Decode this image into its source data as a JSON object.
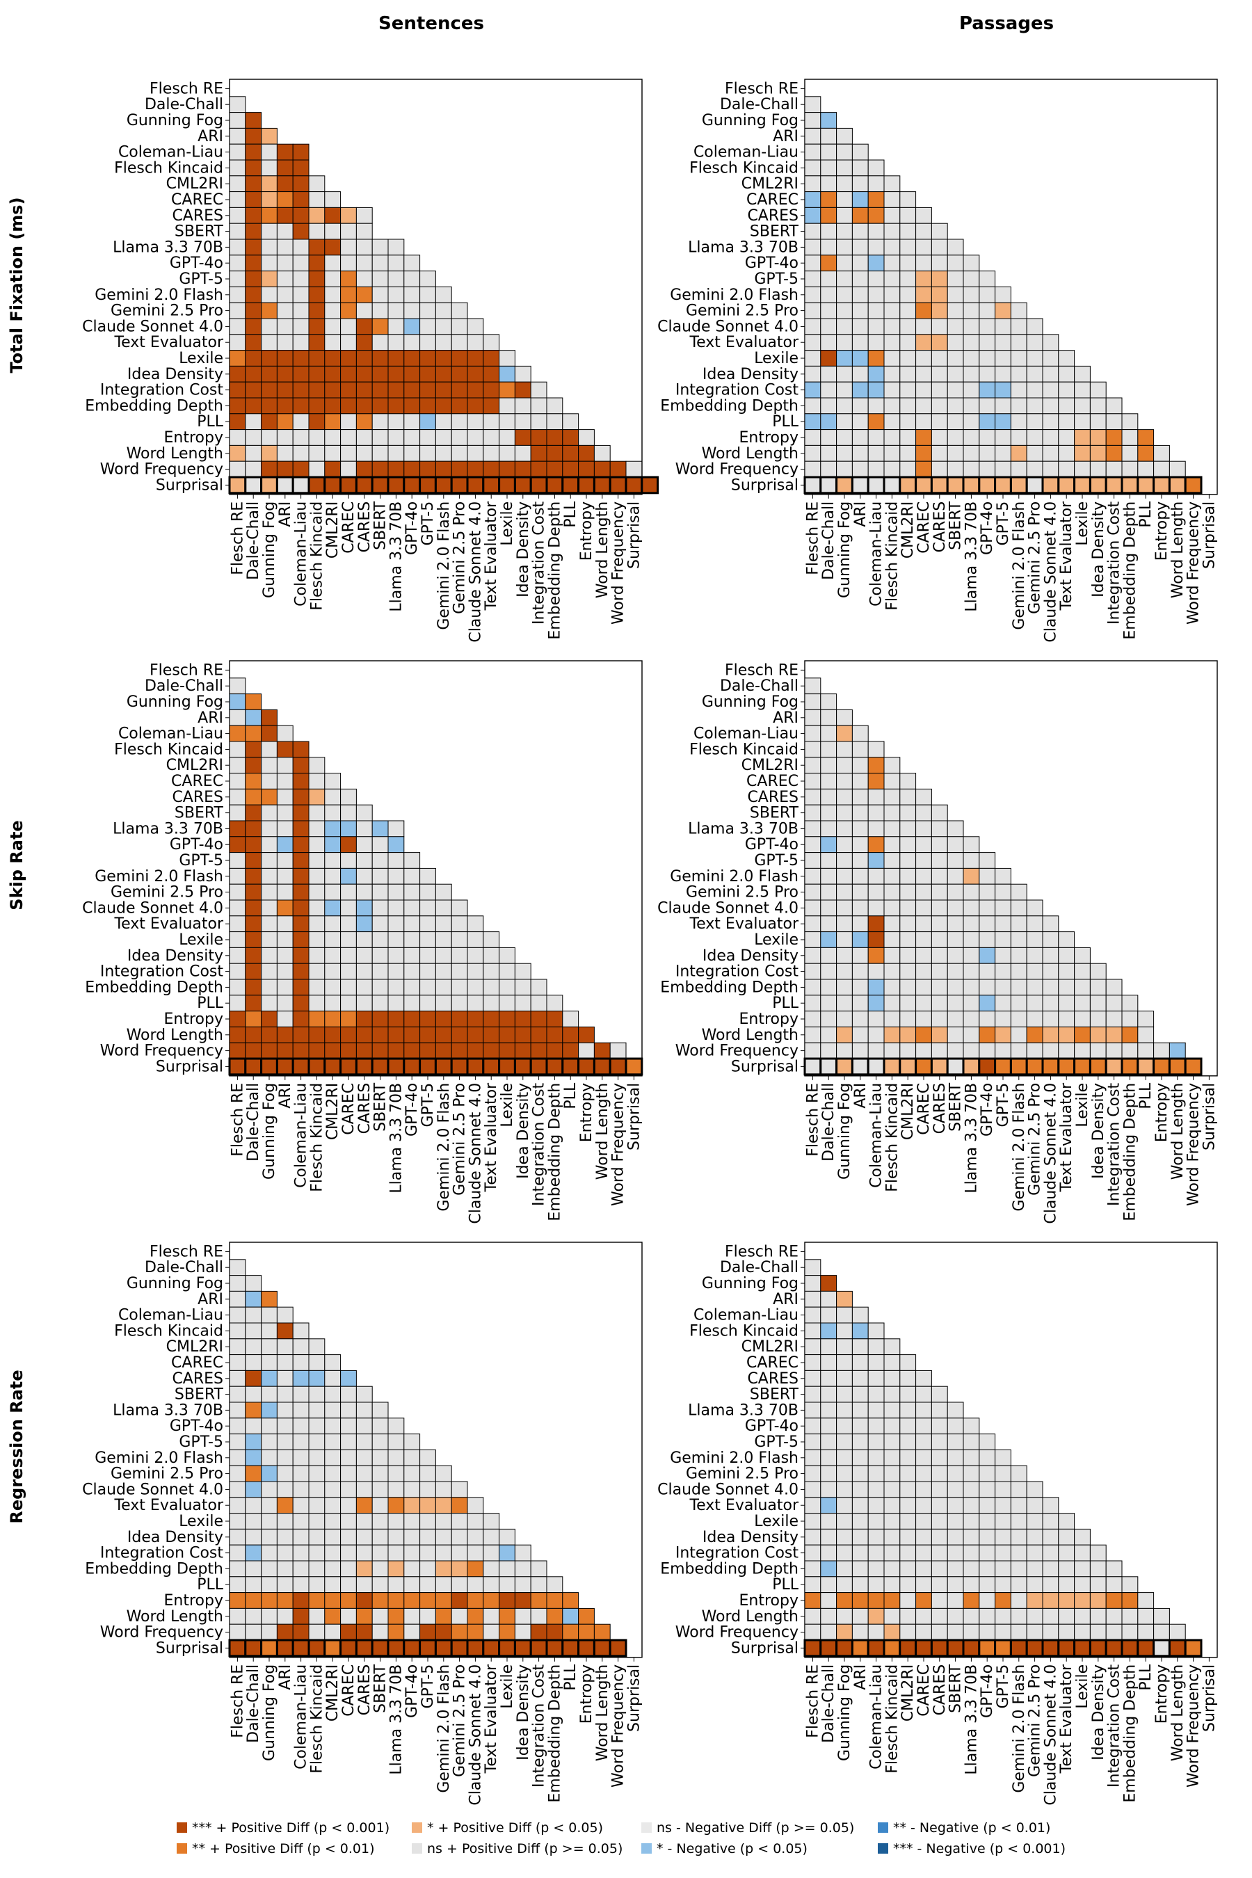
{
  "figure": {
    "column_titles": [
      "Sentences",
      "Passages"
    ],
    "row_titles": [
      "Total Fixation (ms)",
      "Skip Rate",
      "Regression Rate"
    ]
  },
  "colors": {
    "pos3": "#b84808",
    "pos2": "#e47b28",
    "pos1": "#f3b07a",
    "nsp": "#e3e3e3",
    "nsn": "#e9e9e9",
    "neg1": "#8fc0e8",
    "neg2": "#3e87c8",
    "neg3": "#1c5e97"
  },
  "chart_data": [
    {
      "type": "heatmap",
      "id": "fix-sent",
      "row": "Total Fixation (ms)",
      "column": "Sentences",
      "labels": [
        "Flesch RE",
        "Dale-Chall",
        "Gunning Fog",
        "ARI",
        "Coleman-Liau",
        "Flesch Kincaid",
        "CML2RI",
        "CAREC",
        "CARES",
        "SBERT",
        "Llama 3.3 70B",
        "GPT-4o",
        "GPT-5",
        "Gemini 2.0 Flash",
        "Gemini 2.5 Pro",
        "Claude Sonnet 4.0",
        "Text Evaluator",
        "Lexile",
        "Idea Density",
        "Integration Cost",
        "Embedding Depth",
        "PLL",
        "Entropy",
        "Word Length",
        "Word Frequency",
        "Surprisal"
      ],
      "cells": [
        "",
        "n",
        "n3",
        "n3p",
        "n3n33",
        "n3n33",
        "n3p33n",
        "n3p23nn",
        "n3233p3pn",
        "n3nn3nnnn",
        "n3nnn33nnnn",
        "n3nnn3nnnnnn",
        "n3pnn3n2nnnnn",
        "n3nnn3n22nnnnn",
        "n32nn3n2nnnnnnn",
        "n3nnn3nn32n1nnnn",
        "n3nnn3nn3nnnnnnnn",
        "23333333333333333n",
        "333333333333333331n",
        "3333333333333333323n",
        "33333333333333333nnnn",
        "3n32n32n2nnn1nnnnnnnnn",
        "nnnnnnnnnnnnnnnnnn3333n",
        "pnpnnnnnnnnnnnnnnnn3333n",
        "nn333n3n33333333333333333n",
        "pnpnn3333333333333333333333"
      ]
    },
    {
      "type": "heatmap",
      "id": "fix-pass",
      "row": "Total Fixation (ms)",
      "column": "Passages",
      "labels": [
        "Flesch RE",
        "Dale-Chall",
        "Gunning Fog",
        "ARI",
        "Coleman-Liau",
        "Flesch Kincaid",
        "CML2RI",
        "CAREC",
        "CARES",
        "SBERT",
        "Llama 3.3 70B",
        "GPT-4o",
        "GPT-5",
        "Gemini 2.0 Flash",
        "Gemini 2.5 Pro",
        "Claude Sonnet 4.0",
        "Text Evaluator",
        "Lexile",
        "Idea Density",
        "Integration Cost",
        "Embedding Depth",
        "PLL",
        "Entropy",
        "Word Length",
        "Word Frequency",
        "Surprisal"
      ],
      "cells": [
        "",
        "n",
        "n1",
        "nnn",
        "nnnn",
        "nnnnn",
        "nnnnnn",
        "12n12nn",
        "12n22nnn",
        "nnnnnnnnn",
        "nnnnnnnnnn",
        "n2nn1nnnnnn",
        "nnnnnnnppnnn",
        "nnnnnnnppnnnn",
        "nnnnnnn2pnnnpn",
        "nnnnnnnnnnnnnnn",
        "nnnnnnnppnnnnnnn",
        "n3112nnnnnnnnnnnn",
        "nnnn1nnnnnnnnnnnnn",
        "1nn11nnnnnn11nnnnnn",
        "nnnnnnnnnnnnnnnnnnnn",
        "11nn2nnnnnn11nnnnnnnn",
        "nnnnnnn2nnnnnnnnnpp2n2",
        "nnnnnnn2nnnnnpnnnpp2n2n",
        "nnnnnnn2nnnnnnnnnnnnnnnn",
        "nnpnnnppppppppnppppppppp2"
      ]
    },
    {
      "type": "heatmap",
      "id": "skip-sent",
      "row": "Skip Rate",
      "column": "Sentences",
      "labels": [
        "Flesch RE",
        "Dale-Chall",
        "Gunning Fog",
        "ARI",
        "Coleman-Liau",
        "Flesch Kincaid",
        "CML2RI",
        "CAREC",
        "CARES",
        "SBERT",
        "Llama 3.3 70B",
        "GPT-4o",
        "GPT-5",
        "Gemini 2.0 Flash",
        "Gemini 2.5 Pro",
        "Claude Sonnet 4.0",
        "Text Evaluator",
        "Lexile",
        "Idea Density",
        "Integration Cost",
        "Embedding Depth",
        "PLL",
        "Entropy",
        "Word Length",
        "Word Frequency",
        "Surprisal"
      ],
      "cells": [
        "",
        "n",
        "12",
        "n13",
        "223n",
        "n3n33",
        "n3nn3n",
        "n2nn3nn",
        "n22n3pnn",
        "n3nn3nnnn",
        "33nn3n11n1n",
        "33n13n13nn1",
        "n3nn3nnnnnnn",
        "n3nn3nn1nnnnn",
        "n3nn3nnnnnnnnn",
        "n3n23n1n1nnnnnn",
        "n3nn3nnn1nnnnnnn",
        "n3nn3nnnnnnnnnnnn",
        "n3nn3nnnnnnnnnnnnn",
        "n3nn3nnnnnnnnnnnnnn",
        "n3nn3nnnnnnnnnnnnnnn",
        "n3nn3nnnnnnnnnnnnnnnn",
        "323n32223333333333333n",
        "33333333333333333333333",
        "3333333333333333333333n3n",
        "33333333333333333333333332"
      ]
    },
    {
      "type": "heatmap",
      "id": "skip-pass",
      "row": "Skip Rate",
      "column": "Passages",
      "labels": [
        "Flesch RE",
        "Dale-Chall",
        "Gunning Fog",
        "ARI",
        "Coleman-Liau",
        "Flesch Kincaid",
        "CML2RI",
        "CAREC",
        "CARES",
        "SBERT",
        "Llama 3.3 70B",
        "GPT-4o",
        "GPT-5",
        "Gemini 2.0 Flash",
        "Gemini 2.5 Pro",
        "Claude Sonnet 4.0",
        "Text Evaluator",
        "Lexile",
        "Idea Density",
        "Integration Cost",
        "Embedding Depth",
        "PLL",
        "Entropy",
        "Word Length",
        "Word Frequency",
        "Surprisal"
      ],
      "cells": [
        "",
        "n",
        "nn",
        "nnn",
        "nnpn",
        "nnnnn",
        "nnnn2n",
        "nnnn2nn",
        "nnnnnnnn",
        "nnnnnnnnn",
        "nnnnnnnnnn",
        "n1nn2nnnnnn",
        "nnnn1nnnnnnn",
        "nnnnnnnnnnpnn",
        "nnnnnnnnnnnnnn",
        "nnnnnnnnnnnnnnn",
        "nnnn3nnnnnnnnnnn",
        "n1n13nnnnnnnnnnnn",
        "nnnn2nnnnnn1nnnnnn",
        "nnnnnnnnnnnnnnnnnnn",
        "nnnn1nnnnnnnnnnnnnnn",
        "nnnn1nnnnnn1nnnnnnnnn",
        "nnnnnnnnnnnnnnnnnnnnnn",
        "nnpnnpp2pnn2pn2pp2pp2n",
        "nnnnnnnnnnnnnnnnnnnnnnn1",
        "nnpnnpp2pnp32222222p2p222"
      ]
    },
    {
      "type": "heatmap",
      "id": "reg-sent",
      "row": "Regression Rate",
      "column": "Sentences",
      "labels": [
        "Flesch RE",
        "Dale-Chall",
        "Gunning Fog",
        "ARI",
        "Coleman-Liau",
        "Flesch Kincaid",
        "CML2RI",
        "CAREC",
        "CARES",
        "SBERT",
        "Llama 3.3 70B",
        "GPT-4o",
        "GPT-5",
        "Gemini 2.0 Flash",
        "Gemini 2.5 Pro",
        "Claude Sonnet 4.0",
        "Text Evaluator",
        "Lexile",
        "Idea Density",
        "Integration Cost",
        "Embedding Depth",
        "PLL",
        "Entropy",
        "Word Length",
        "Word Frequency",
        "Surprisal"
      ],
      "cells": [
        "",
        "n",
        "nn",
        "n12",
        "nnnn",
        "nnn3n",
        "nnnnnn",
        "nnnnnnn",
        "n31n11n1",
        "nnnnnnnnn",
        "n21nnnnnnn",
        "nnnnnnnnnnn",
        "n1nnnnnnnnnn",
        "n1nnnnnnnnnnn",
        "n21nnnnnnnnnnn",
        "n1nnnnnnnnnnnnn",
        "nnn2nnnn2n2ppp2n",
        "nnnnnnnnnnnnnnnnn",
        "nnnnnnnnnnnnnnnnnn",
        "n1nnnnnnnnnnnnnnn1n",
        "nnnnnnnnpnpnnpp2nnnn",
        "nnnnnnnnnnnnnnnnnnnnn",
        "2222322232222232233222",
        "nnnn3n2n2n2nn2n2n2nn212",
        "nnn33nn33n2n3322n2n33222",
        "3323332333333333333333333"
      ]
    },
    {
      "type": "heatmap",
      "id": "reg-pass",
      "row": "Regression Rate",
      "column": "Passages",
      "labels": [
        "Flesch RE",
        "Dale-Chall",
        "Gunning Fog",
        "ARI",
        "Coleman-Liau",
        "Flesch Kincaid",
        "CML2RI",
        "CAREC",
        "CARES",
        "SBERT",
        "Llama 3.3 70B",
        "GPT-4o",
        "GPT-5",
        "Gemini 2.0 Flash",
        "Gemini 2.5 Pro",
        "Claude Sonnet 4.0",
        "Text Evaluator",
        "Lexile",
        "Idea Density",
        "Integration Cost",
        "Embedding Depth",
        "PLL",
        "Entropy",
        "Word Length",
        "Word Frequency",
        "Surprisal"
      ],
      "cells": [
        "",
        "n",
        "n3",
        "nnp",
        "nnnn",
        "n1n1n",
        "nnnnnn",
        "nnnnnnn",
        "nnnnnnnn",
        "nnnnnnnnn",
        "nnnnnnnnnn",
        "nnnnnnnnnnn",
        "nnnnnnnnnnnn",
        "nnnnnnnnnnnnn",
        "nnnnnnnnnnnnnn",
        "nnnnnnnnnnnnnnn",
        "n1nnnnnnnnnnnnnn",
        "nnnnnnnnnnnnnnnnn",
        "nnnnnnnnnnnnnnnnnn",
        "nnnnnnnnnnnnnnnnnnn",
        "n1nnnnnnnnnnnnnnnnnn",
        "nnnnnnnnnnnnnnnnnnnnn",
        "2n2222n2nn2n2nppppp22n",
        "nnnnpnnnnnnnnnnnnnnnnnn",
        "nnpnnpnnnnnnnnnnnnnnnnnn",
        "3332323333322333333333n32"
      ]
    }
  ],
  "legend": [
    {
      "key": "pos3",
      "label": "*** + Positive Diff (p < 0.001)"
    },
    {
      "key": "pos2",
      "label": "** + Positive Diff (p < 0.01)"
    },
    {
      "key": "pos1",
      "label": "* + Positive Diff (p < 0.05)"
    },
    {
      "key": "nsp",
      "label": "ns + Positive Diff (p >= 0.05)"
    },
    {
      "key": "nsn",
      "label": "ns - Negative Diff (p >= 0.05)"
    },
    {
      "key": "neg1",
      "label": "* - Negative (p < 0.05)"
    },
    {
      "key": "neg2",
      "label": "** - Negative (p < 0.01)"
    },
    {
      "key": "neg3",
      "label": "*** - Negative (p < 0.001)"
    }
  ]
}
